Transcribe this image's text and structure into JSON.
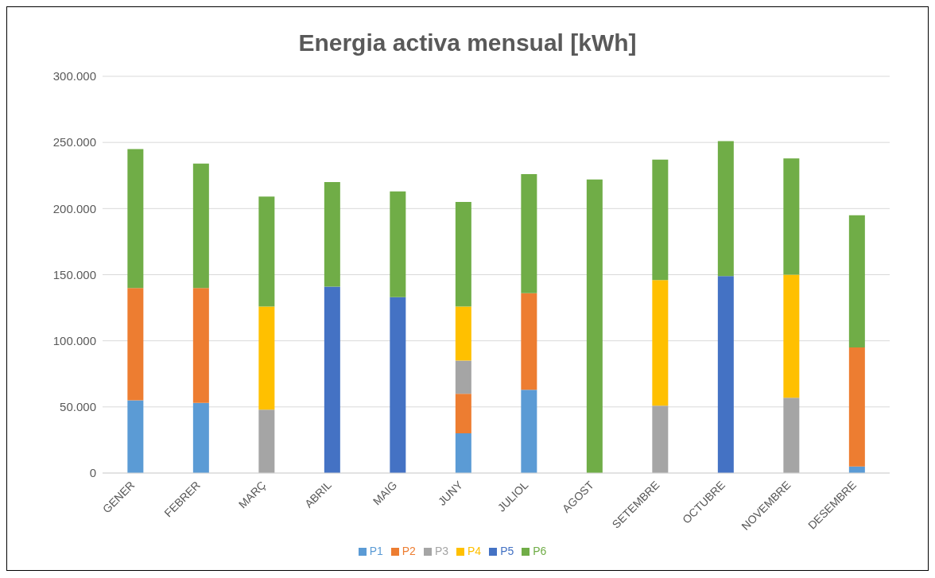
{
  "chart_data": {
    "type": "bar",
    "title": "Energia activa mensual [kWh]",
    "stacked": true,
    "grid": "y",
    "legend": "bottom",
    "categories": [
      "GENER",
      "FEBRER",
      "MARÇ",
      "ABRIL",
      "MAIG",
      "JUNY",
      "JULIOL",
      "AGOST",
      "SETEMBRE",
      "OCTUBRE",
      "NOVEMBRE",
      "DESEMBRE"
    ],
    "ylim": [
      0,
      300000
    ],
    "yticks": [
      {
        "value": 0,
        "label": "0"
      },
      {
        "value": 50000,
        "label": "50.000"
      },
      {
        "value": 100000,
        "label": "100.000"
      },
      {
        "value": 150000,
        "label": "150.000"
      },
      {
        "value": 200000,
        "label": "200.000"
      },
      {
        "value": 250000,
        "label": "250.000"
      },
      {
        "value": 300000,
        "label": "300.000"
      }
    ],
    "series": [
      {
        "name": "P1",
        "color": "#5b9bd5",
        "values": [
          55000,
          53000,
          null,
          null,
          null,
          30000,
          63000,
          null,
          null,
          null,
          null,
          5000
        ]
      },
      {
        "name": "P2",
        "color": "#ed7d31",
        "values": [
          85000,
          87000,
          null,
          null,
          null,
          30000,
          73000,
          null,
          null,
          null,
          null,
          90000
        ]
      },
      {
        "name": "P3",
        "color": "#a5a5a5",
        "values": [
          null,
          null,
          48000,
          null,
          null,
          25000,
          null,
          null,
          51000,
          null,
          57000,
          null
        ]
      },
      {
        "name": "P4",
        "color": "#ffc000",
        "values": [
          null,
          null,
          78000,
          null,
          null,
          41000,
          null,
          null,
          95000,
          null,
          93000,
          null
        ]
      },
      {
        "name": "P5",
        "color": "#4472c4",
        "values": [
          null,
          null,
          null,
          141000,
          133000,
          null,
          null,
          null,
          null,
          149000,
          null,
          null
        ]
      },
      {
        "name": "P6",
        "color": "#70ad47",
        "values": [
          105000,
          94000,
          83000,
          79000,
          80000,
          79000,
          90000,
          222000,
          91000,
          102000,
          88000,
          100000
        ]
      }
    ]
  }
}
